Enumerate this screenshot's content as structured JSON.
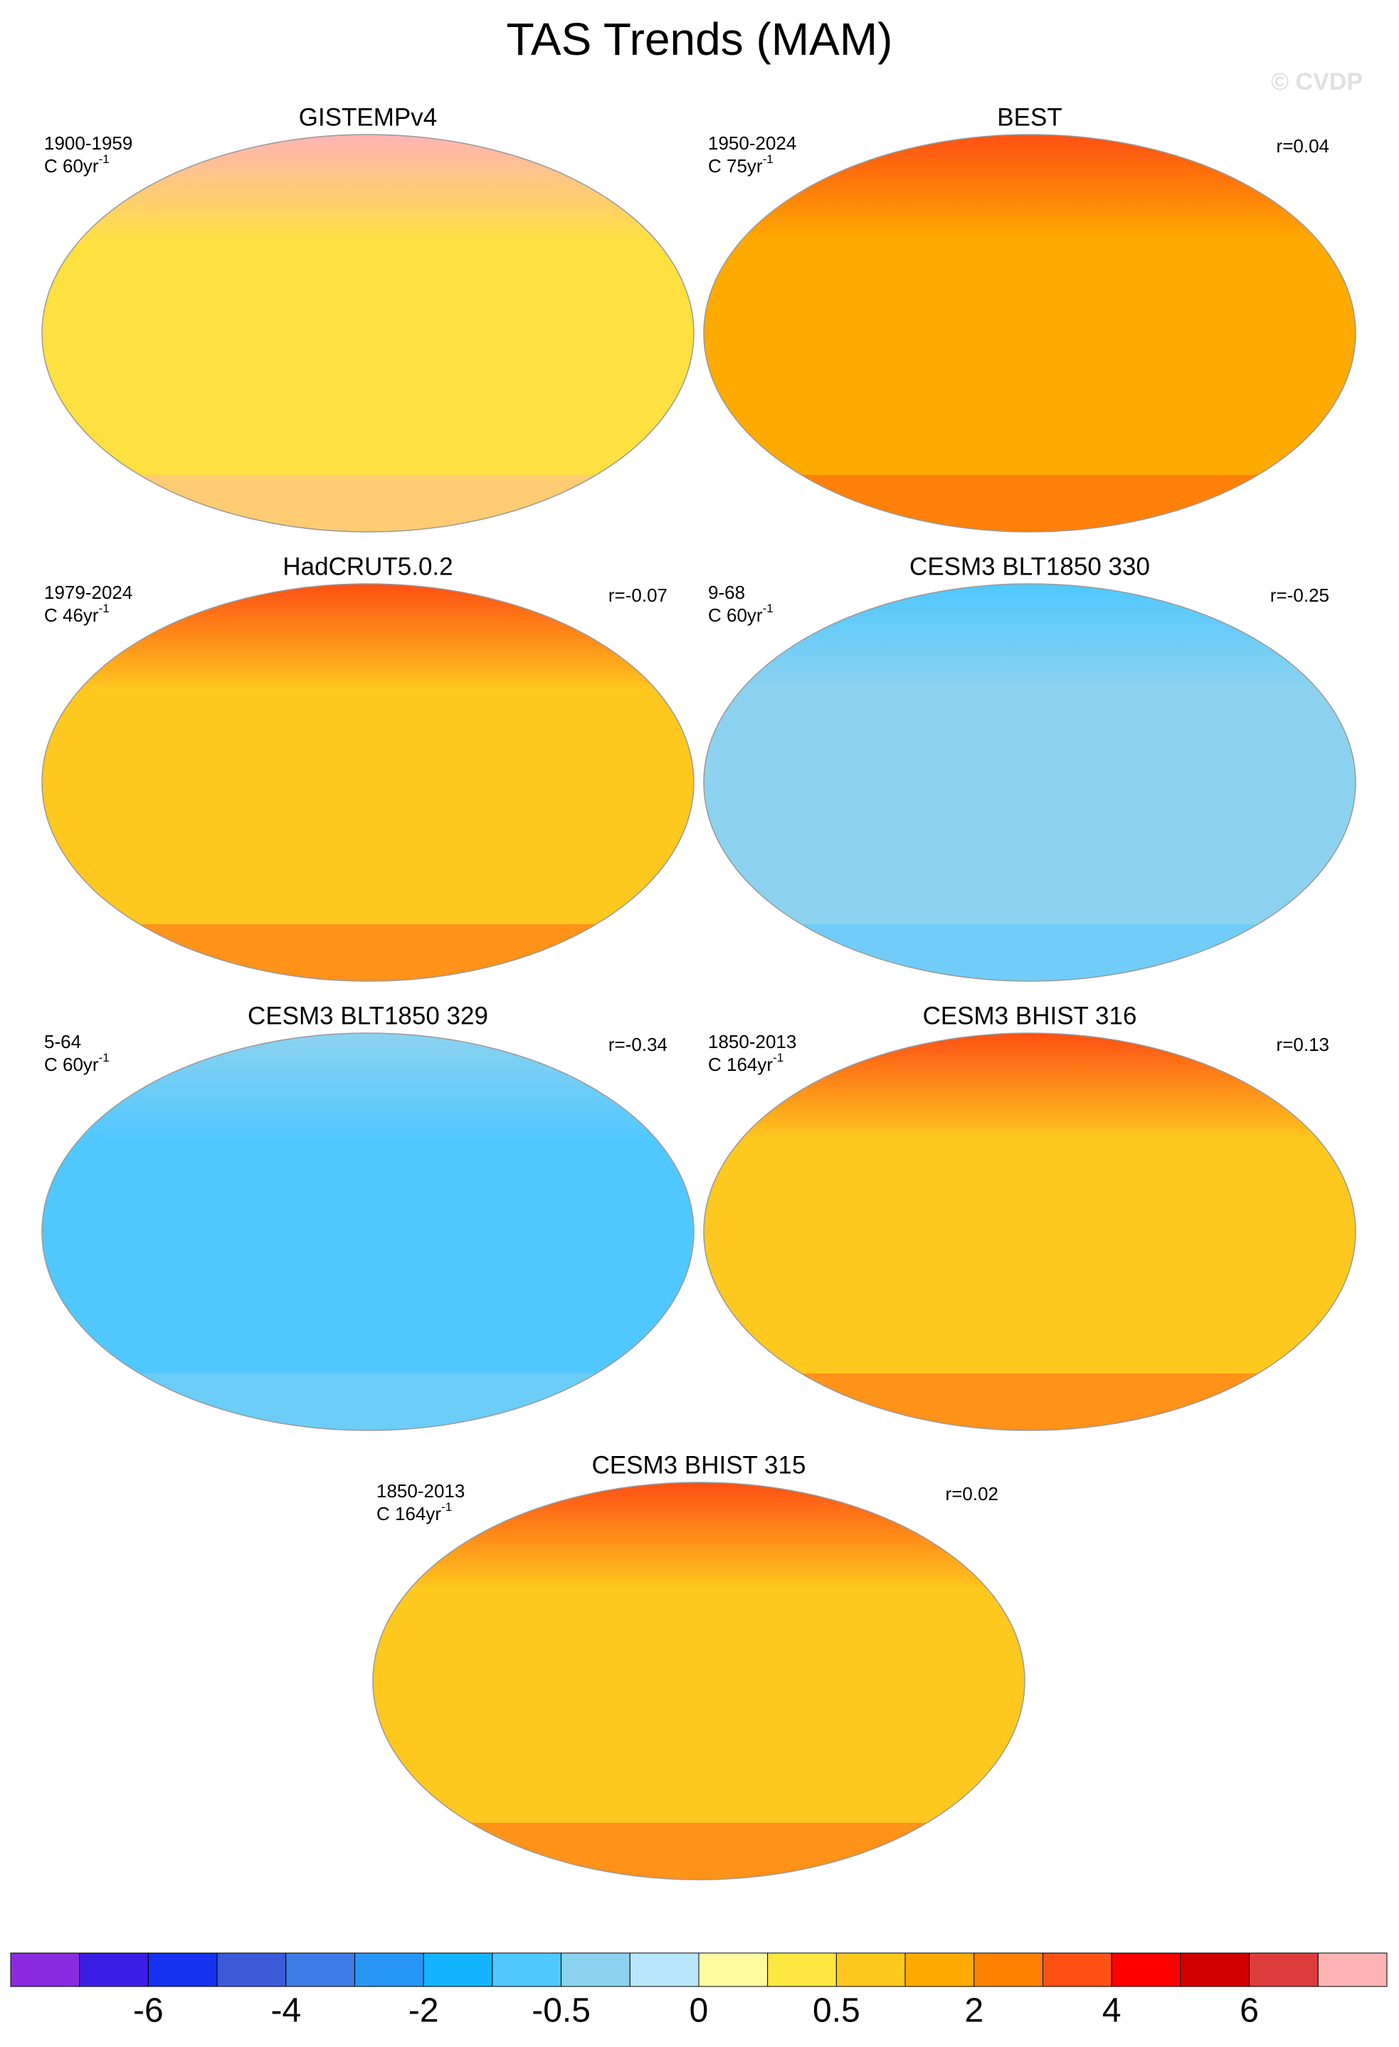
{
  "title": "TAS Trends (MAM)",
  "watermark": "© CVDP",
  "panels": [
    {
      "title": "GISTEMPv4",
      "period": "1900-1959",
      "units": "C 60yr",
      "units_exp": "-1",
      "r": null,
      "fill": "#ffe041",
      "polar_fill": "#ffb4b4"
    },
    {
      "title": "BEST",
      "period": "1950-2024",
      "units": "C 75yr",
      "units_exp": "-1",
      "r": "r=0.04",
      "fill": "#ffaa00",
      "polar_fill": "#ff5014"
    },
    {
      "title": "HadCRUT5.0.2",
      "period": "1979-2024",
      "units": "C 46yr",
      "units_exp": "-1",
      "r": "r=-0.07",
      "fill": "#ffc81e",
      "polar_fill": "#ff5014"
    },
    {
      "title": "CESM3 BLT1850 330",
      "period": "9-68",
      "units": "C 60yr",
      "units_exp": "-1",
      "r": "r=-0.25",
      "fill": "#8cd2f0",
      "polar_fill": "#50c8ff"
    },
    {
      "title": "CESM3 BLT1850 329",
      "period": "5-64",
      "units": "C 60yr",
      "units_exp": "-1",
      "r": "r=-0.34",
      "fill": "#50c8ff",
      "polar_fill": "#8cd2f0"
    },
    {
      "title": "CESM3 BHIST 316",
      "period": "1850-2013",
      "units": "C 164yr",
      "units_exp": "-1",
      "r": "r=0.13",
      "fill": "#ffc81e",
      "polar_fill": "#ff5014"
    },
    {
      "title": "CESM3 BHIST 315",
      "period": "1850-2013",
      "units": "C 164yr",
      "units_exp": "-1",
      "r": "r=0.02",
      "fill": "#ffc81e",
      "polar_fill": "#ff5014"
    }
  ],
  "colorbar": {
    "colors": [
      "#8a2be2",
      "#3a1ee6",
      "#1432f0",
      "#3c5ad7",
      "#3c7ce6",
      "#2896f5",
      "#14b4ff",
      "#50c8ff",
      "#8cd2f0",
      "#b9e6fa",
      "#fffaa0",
      "#ffe641",
      "#ffc81e",
      "#ffaa00",
      "#ff8200",
      "#ff5014",
      "#ff0000",
      "#d20000",
      "#dc3c3c",
      "#ffb4b4"
    ],
    "labels": [
      "-6",
      "-4",
      "-2",
      "-0.5",
      "0",
      "0.5",
      "2",
      "4",
      "6"
    ]
  }
}
